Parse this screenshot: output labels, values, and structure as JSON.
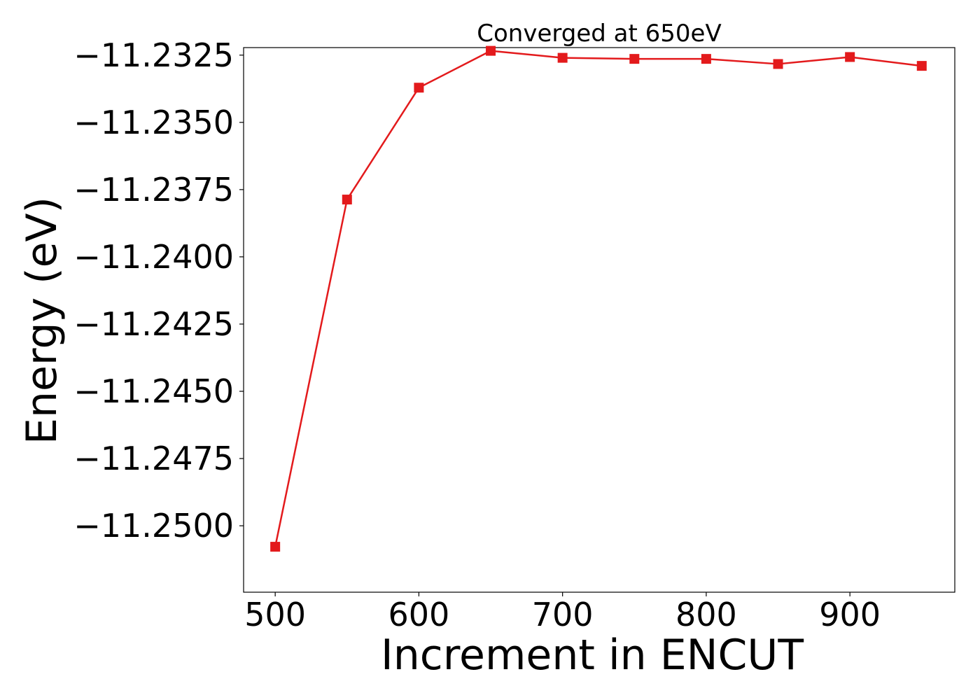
{
  "chart_data": {
    "type": "line",
    "title": "Converged at 650eV",
    "xlabel": "Increment in ENCUT",
    "ylabel": "Energy (eV)",
    "x": [
      500,
      550,
      600,
      650,
      700,
      750,
      800,
      850,
      900,
      950
    ],
    "series": [
      {
        "values": [
          -11.25078,
          -11.23787,
          -11.23371,
          -11.23234,
          -11.2326,
          -11.23264,
          -11.23264,
          -11.23283,
          -11.23257,
          -11.2329
        ],
        "color": "#e31a1c",
        "marker": "square"
      }
    ],
    "xlim": [
      478,
      973
    ],
    "ylim": [
      -11.25247,
      -11.23222
    ],
    "xticks": [
      500,
      600,
      700,
      800,
      900
    ],
    "xtick_labels": [
      "500",
      "600",
      "700",
      "800",
      "900"
    ],
    "yticks": [
      -11.25,
      -11.2475,
      -11.245,
      -11.2425,
      -11.24,
      -11.2375,
      -11.235,
      -11.2325
    ],
    "ytick_labels": [
      "−11.2500",
      "−11.2475",
      "−11.2450",
      "−11.2425",
      "−11.2400",
      "−11.2375",
      "−11.2350",
      "−11.2325"
    ],
    "grid": false,
    "legend": "none"
  }
}
